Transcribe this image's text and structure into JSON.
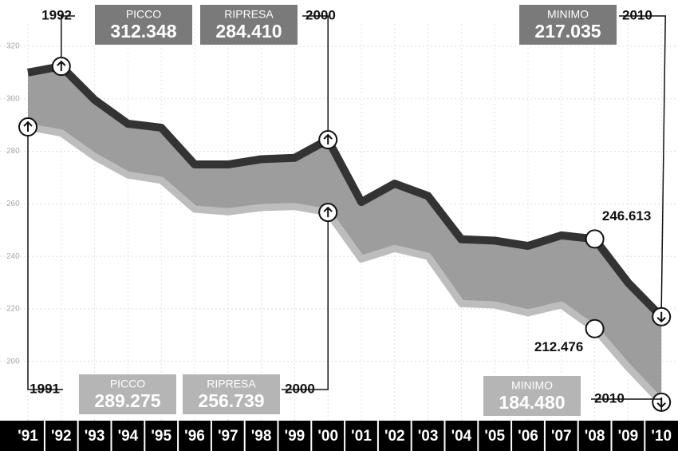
{
  "chart_data": {
    "type": "band",
    "categories": [
      "'91",
      "'92",
      "'93",
      "'94",
      "'95",
      "'96",
      "'97",
      "'98",
      "'99",
      "'00",
      "'01",
      "'02",
      "'03",
      "'04",
      "'05",
      "'06",
      "'07",
      "'08",
      "'09",
      "'10"
    ],
    "series": [
      {
        "color": "#333333",
        "values": [
          310,
          312.348,
          299.6,
          290.5,
          289,
          275,
          275,
          277,
          277.5,
          284.41,
          260.7,
          267.7,
          263,
          246.5,
          246,
          244,
          248,
          246.613,
          230,
          217.035
        ],
        "value_labels": [
          null,
          "312.348",
          null,
          null,
          null,
          null,
          null,
          null,
          null,
          "284.410",
          null,
          null,
          null,
          null,
          null,
          null,
          null,
          "246.613",
          null,
          "217.035"
        ],
        "callouts": [
          {
            "label": "PICCO",
            "year": "1992"
          },
          {
            "label": "RIPRESA",
            "year": "2000"
          },
          {
            "label": "MINIMO",
            "year": "2010"
          }
        ]
      },
      {
        "color": "#bdbdbd",
        "values": [
          289.275,
          287,
          278,
          271,
          269,
          258,
          257,
          258.6,
          259,
          256.739,
          239,
          243,
          240,
          222,
          221.5,
          218.5,
          221.5,
          212.476,
          197.8,
          184.48
        ],
        "value_labels": [
          "289.275",
          null,
          null,
          null,
          null,
          null,
          null,
          null,
          null,
          "256.739",
          null,
          null,
          null,
          null,
          null,
          null,
          null,
          "212.476",
          null,
          "184.480"
        ],
        "callouts": [
          {
            "label": "PICCO",
            "year": "1991"
          },
          {
            "label": "RIPRESA",
            "year": "2000"
          },
          {
            "label": "MINIMO",
            "year": "2010"
          }
        ]
      }
    ],
    "ylim": [
      180,
      325
    ],
    "yticks": [
      200,
      220,
      240,
      260,
      280,
      300,
      320
    ],
    "grid": true
  }
}
